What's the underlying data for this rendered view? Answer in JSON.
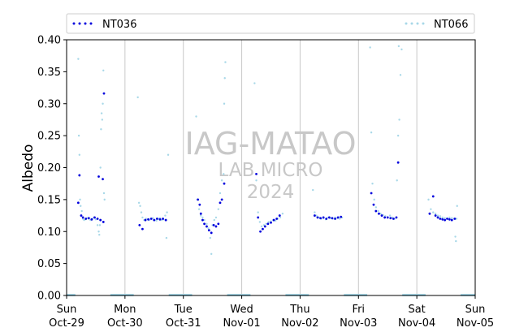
{
  "chart_data": {
    "type": "scatter",
    "title": "",
    "xlabel": "",
    "ylabel": "Albedo",
    "ylim": [
      0,
      0.4
    ],
    "y_ticks": [
      "0.00",
      "0.05",
      "0.10",
      "0.15",
      "0.20",
      "0.25",
      "0.30",
      "0.35",
      "0.40"
    ],
    "xlim": [
      "2024-10-29 00:00",
      "2024-11-05 00:00"
    ],
    "x_ticks": [
      {
        "day": "Sun",
        "date": "Oct-29"
      },
      {
        "day": "Mon",
        "date": "Oct-30"
      },
      {
        "day": "Tue",
        "date": "Oct-31"
      },
      {
        "day": "Wed",
        "date": "Nov-01"
      },
      {
        "day": "Thu",
        "date": "Nov-02"
      },
      {
        "day": "Fri",
        "date": "Nov-03"
      },
      {
        "day": "Sat",
        "date": "Nov-04"
      },
      {
        "day": "Sun",
        "date": "Nov-05"
      }
    ],
    "grid": "vertical",
    "legend": "top",
    "watermark": [
      "IAG-MATAO",
      "LAB MICRO",
      "2024"
    ],
    "series": [
      {
        "name": "NT036",
        "color": "#0000dd",
        "points": [
          [
            0.2,
            0.145
          ],
          [
            0.22,
            0.188
          ],
          [
            0.25,
            0.125
          ],
          [
            0.28,
            0.122
          ],
          [
            0.33,
            0.12
          ],
          [
            0.38,
            0.121
          ],
          [
            0.43,
            0.119
          ],
          [
            0.48,
            0.122
          ],
          [
            0.53,
            0.12
          ],
          [
            0.55,
            0.186
          ],
          [
            0.58,
            0.118
          ],
          [
            0.62,
            0.182
          ],
          [
            0.64,
            0.316
          ],
          [
            0.63,
            0.115
          ],
          [
            1.25,
            0.11
          ],
          [
            1.3,
            0.104
          ],
          [
            1.35,
            0.118
          ],
          [
            1.4,
            0.119
          ],
          [
            1.45,
            0.12
          ],
          [
            1.5,
            0.118
          ],
          [
            1.55,
            0.12
          ],
          [
            1.6,
            0.119
          ],
          [
            1.65,
            0.12
          ],
          [
            1.7,
            0.118
          ],
          [
            2.25,
            0.15
          ],
          [
            2.28,
            0.142
          ],
          [
            2.3,
            0.128
          ],
          [
            2.33,
            0.118
          ],
          [
            2.36,
            0.112
          ],
          [
            2.4,
            0.108
          ],
          [
            2.44,
            0.102
          ],
          [
            2.48,
            0.098
          ],
          [
            2.52,
            0.11
          ],
          [
            2.56,
            0.108
          ],
          [
            2.6,
            0.112
          ],
          [
            2.63,
            0.145
          ],
          [
            2.66,
            0.15
          ],
          [
            2.7,
            0.175
          ],
          [
            3.25,
            0.19
          ],
          [
            3.28,
            0.122
          ],
          [
            3.32,
            0.1
          ],
          [
            3.36,
            0.104
          ],
          [
            3.4,
            0.108
          ],
          [
            3.45,
            0.112
          ],
          [
            3.5,
            0.114
          ],
          [
            3.55,
            0.118
          ],
          [
            3.6,
            0.12
          ],
          [
            3.65,
            0.125
          ],
          [
            4.25,
            0.125
          ],
          [
            4.3,
            0.122
          ],
          [
            4.35,
            0.121
          ],
          [
            4.4,
            0.122
          ],
          [
            4.45,
            0.12
          ],
          [
            4.5,
            0.122
          ],
          [
            4.55,
            0.121
          ],
          [
            4.6,
            0.12
          ],
          [
            4.65,
            0.122
          ],
          [
            4.7,
            0.123
          ],
          [
            5.22,
            0.16
          ],
          [
            5.26,
            0.142
          ],
          [
            5.3,
            0.132
          ],
          [
            5.35,
            0.128
          ],
          [
            5.4,
            0.125
          ],
          [
            5.45,
            0.122
          ],
          [
            5.5,
            0.122
          ],
          [
            5.55,
            0.121
          ],
          [
            5.6,
            0.12
          ],
          [
            5.65,
            0.122
          ],
          [
            5.68,
            0.208
          ],
          [
            6.22,
            0.128
          ],
          [
            6.28,
            0.155
          ],
          [
            6.32,
            0.125
          ],
          [
            6.36,
            0.122
          ],
          [
            6.4,
            0.12
          ],
          [
            6.44,
            0.119
          ],
          [
            6.48,
            0.118
          ],
          [
            6.52,
            0.12
          ],
          [
            6.56,
            0.119
          ],
          [
            6.6,
            0.118
          ],
          [
            6.65,
            0.12
          ]
        ]
      },
      {
        "name": "NT066",
        "color": "#a8d8e8",
        "points": [
          [
            0.2,
            0.37
          ],
          [
            0.21,
            0.25
          ],
          [
            0.22,
            0.22
          ],
          [
            0.23,
            0.15
          ],
          [
            0.24,
            0.14
          ],
          [
            0.26,
            0.132
          ],
          [
            0.28,
            0.12
          ],
          [
            0.3,
            0.118
          ],
          [
            0.32,
            0.119
          ],
          [
            0.35,
            0.121
          ],
          [
            0.38,
            0.12
          ],
          [
            0.41,
            0.118
          ],
          [
            0.44,
            0.12
          ],
          [
            0.47,
            0.122
          ],
          [
            0.5,
            0.119
          ],
          [
            0.53,
            0.11
          ],
          [
            0.55,
            0.1
          ],
          [
            0.56,
            0.095
          ],
          [
            0.57,
            0.11
          ],
          [
            0.58,
            0.2
          ],
          [
            0.59,
            0.26
          ],
          [
            0.6,
            0.285
          ],
          [
            0.61,
            0.275
          ],
          [
            0.62,
            0.3
          ],
          [
            0.63,
            0.352
          ],
          [
            0.64,
            0.16
          ],
          [
            0.65,
            0.15
          ],
          [
            1.22,
            0.31
          ],
          [
            1.24,
            0.145
          ],
          [
            1.26,
            0.14
          ],
          [
            1.28,
            0.13
          ],
          [
            1.3,
            0.122
          ],
          [
            1.33,
            0.118
          ],
          [
            1.36,
            0.12
          ],
          [
            1.39,
            0.119
          ],
          [
            1.42,
            0.118
          ],
          [
            1.45,
            0.12
          ],
          [
            1.48,
            0.121
          ],
          [
            1.51,
            0.118
          ],
          [
            1.54,
            0.117
          ],
          [
            1.57,
            0.12
          ],
          [
            1.6,
            0.121
          ],
          [
            1.63,
            0.118
          ],
          [
            1.66,
            0.119
          ],
          [
            1.69,
            0.125
          ],
          [
            1.71,
            0.09
          ],
          [
            1.72,
            0.13
          ],
          [
            1.74,
            0.22
          ],
          [
            2.22,
            0.28
          ],
          [
            2.24,
            0.15
          ],
          [
            2.27,
            0.135
          ],
          [
            2.3,
            0.125
          ],
          [
            2.33,
            0.122
          ],
          [
            2.36,
            0.118
          ],
          [
            2.4,
            0.112
          ],
          [
            2.43,
            0.105
          ],
          [
            2.46,
            0.09
          ],
          [
            2.48,
            0.065
          ],
          [
            2.5,
            0.11
          ],
          [
            2.53,
            0.118
          ],
          [
            2.56,
            0.122
          ],
          [
            2.6,
            0.135
          ],
          [
            2.63,
            0.16
          ],
          [
            2.66,
            0.18
          ],
          [
            2.69,
            0.19
          ],
          [
            2.7,
            0.3
          ],
          [
            2.72,
            0.365
          ],
          [
            2.71,
            0.34
          ],
          [
            3.22,
            0.332
          ],
          [
            3.25,
            0.18
          ],
          [
            3.28,
            0.13
          ],
          [
            3.31,
            0.115
          ],
          [
            3.34,
            0.108
          ],
          [
            3.38,
            0.11
          ],
          [
            3.42,
            0.112
          ],
          [
            3.46,
            0.115
          ],
          [
            3.5,
            0.116
          ],
          [
            3.54,
            0.118
          ],
          [
            3.58,
            0.117
          ],
          [
            3.62,
            0.12
          ],
          [
            3.66,
            0.122
          ],
          [
            3.7,
            0.128
          ],
          [
            4.22,
            0.165
          ],
          [
            4.25,
            0.13
          ],
          [
            4.28,
            0.125
          ],
          [
            4.32,
            0.122
          ],
          [
            4.36,
            0.12
          ],
          [
            4.4,
            0.121
          ],
          [
            4.44,
            0.119
          ],
          [
            4.48,
            0.122
          ],
          [
            4.52,
            0.121
          ],
          [
            4.56,
            0.12
          ],
          [
            4.6,
            0.122
          ],
          [
            4.64,
            0.121
          ],
          [
            4.68,
            0.12
          ],
          [
            4.72,
            0.122
          ],
          [
            5.2,
            0.388
          ],
          [
            5.22,
            0.255
          ],
          [
            5.24,
            0.175
          ],
          [
            5.27,
            0.15
          ],
          [
            5.3,
            0.138
          ],
          [
            5.34,
            0.132
          ],
          [
            5.38,
            0.128
          ],
          [
            5.42,
            0.126
          ],
          [
            5.46,
            0.124
          ],
          [
            5.5,
            0.122
          ],
          [
            5.54,
            0.125
          ],
          [
            5.58,
            0.122
          ],
          [
            5.62,
            0.12
          ],
          [
            5.66,
            0.18
          ],
          [
            5.68,
            0.25
          ],
          [
            5.7,
            0.275
          ],
          [
            5.72,
            0.345
          ],
          [
            5.74,
            0.385
          ],
          [
            5.69,
            0.39
          ],
          [
            6.2,
            0.15
          ],
          [
            6.24,
            0.135
          ],
          [
            6.28,
            0.13
          ],
          [
            6.32,
            0.128
          ],
          [
            6.36,
            0.125
          ],
          [
            6.4,
            0.124
          ],
          [
            6.44,
            0.122
          ],
          [
            6.48,
            0.121
          ],
          [
            6.52,
            0.12
          ],
          [
            6.56,
            0.122
          ],
          [
            6.6,
            0.121
          ],
          [
            6.64,
            0.12
          ],
          [
            6.66,
            0.092
          ],
          [
            6.67,
            0.085
          ],
          [
            6.68,
            0.12
          ],
          [
            6.69,
            0.14
          ]
        ]
      }
    ],
    "zero_bands": [
      [
        0.0,
        0.15
      ],
      [
        0.75,
        1.15
      ],
      [
        1.75,
        2.15
      ],
      [
        2.75,
        3.15
      ],
      [
        3.75,
        4.15
      ],
      [
        4.75,
        5.15
      ],
      [
        5.75,
        6.15
      ],
      [
        6.75,
        7.0
      ]
    ]
  }
}
